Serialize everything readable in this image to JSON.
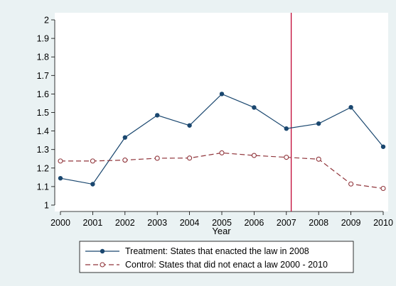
{
  "colors": {
    "outer_background": "#eaf2f3",
    "plot_background": "#ffffff",
    "treatment": "#1a476f",
    "control": "#90353b",
    "reference_line": "#c10534"
  },
  "chart_data": {
    "type": "line",
    "title": "",
    "xlabel": "Year",
    "ylabel": "",
    "x": [
      2000,
      2001,
      2002,
      2003,
      2004,
      2005,
      2006,
      2007,
      2008,
      2009,
      2010
    ],
    "x_tick_labels": [
      "2000",
      "2001",
      "2002",
      "2003",
      "2004",
      "2005",
      "2006",
      "2007",
      "2008",
      "2009",
      "2010"
    ],
    "xlim": [
      2000,
      2010
    ],
    "y_tick_labels": [
      "1",
      "1.1",
      "1.2",
      "1.3",
      "1.4",
      "1.5",
      "1.6",
      "1.7",
      "1.8",
      "1.9",
      "2"
    ],
    "ylim": [
      1,
      2
    ],
    "grid": false,
    "reference_line_x": 2007.15,
    "legend_position": "bottom",
    "series": [
      {
        "name": "Treatment: States that enacted the law in 2008",
        "style": "solid line, filled circle markers",
        "values": [
          1.145,
          1.113,
          1.365,
          1.485,
          1.43,
          1.6,
          1.527,
          1.413,
          1.44,
          1.528,
          1.315
        ]
      },
      {
        "name": "Control: States that did not enact a law 2000 - 2010",
        "style": "dashed line, hollow circle markers",
        "values": [
          1.238,
          1.238,
          1.243,
          1.253,
          1.254,
          1.282,
          1.268,
          1.258,
          1.248,
          1.114,
          1.09
        ]
      }
    ]
  }
}
